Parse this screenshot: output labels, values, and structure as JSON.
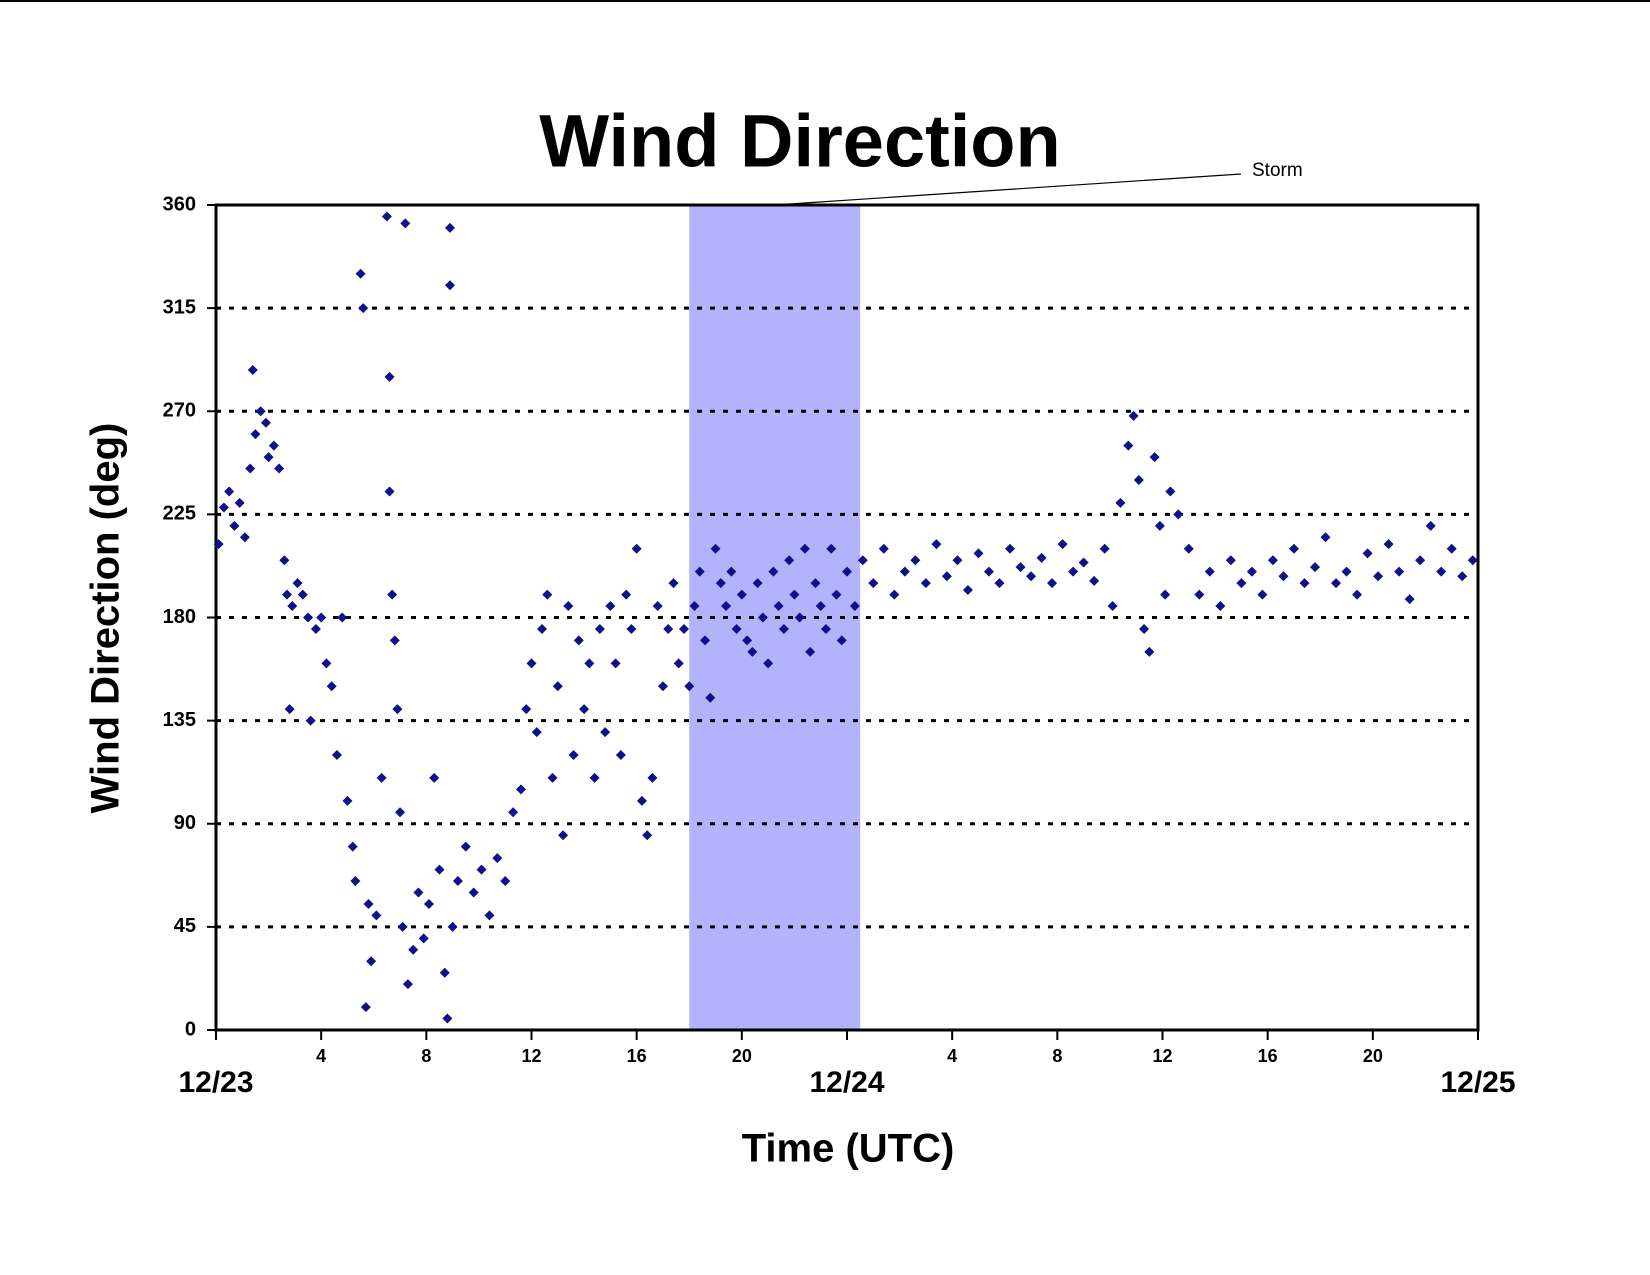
{
  "chart_data": {
    "type": "scatter",
    "title": "Wind Direction",
    "x_label": "Time (UTC)",
    "y_label": "Wind Direction (deg)",
    "color": "#10108a",
    "marker": "diamond",
    "grid": true,
    "shaded_region": {
      "label": "Storm",
      "x": [
        18,
        24.5
      ],
      "color": "#b3b3fb"
    },
    "xlim": [
      0,
      48
    ],
    "ylim": [
      0,
      360
    ],
    "yticks": [
      0,
      45,
      90,
      135,
      180,
      225,
      270,
      315,
      360
    ],
    "xticks": [
      {
        "value": 0,
        "label": "12/23"
      },
      4,
      8,
      12,
      16,
      20,
      {
        "value": 24,
        "label": "12/24"
      },
      {
        "value": 28,
        "label": "4"
      },
      {
        "value": 32,
        "label": "8"
      },
      {
        "value": 36,
        "label": "12"
      },
      {
        "value": 40,
        "label": "16"
      },
      {
        "value": 44,
        "label": "20"
      },
      {
        "value": 48,
        "label": "12/25"
      }
    ],
    "x": [
      0.1,
      0.3,
      0.5,
      0.7,
      0.9,
      1.1,
      1.3,
      1.4,
      1.5,
      1.7,
      1.9,
      2.0,
      2.2,
      2.4,
      2.6,
      2.7,
      2.8,
      2.9,
      3.1,
      3.3,
      3.5,
      3.6,
      3.8,
      4.0,
      4.2,
      4.4,
      4.6,
      4.8,
      5.0,
      5.2,
      5.3,
      5.5,
      5.6,
      5.7,
      5.8,
      5.9,
      6.1,
      6.3,
      6.5,
      6.6,
      6.6,
      6.7,
      6.8,
      6.9,
      7.0,
      7.1,
      7.2,
      7.3,
      7.5,
      7.7,
      7.9,
      8.1,
      8.3,
      8.5,
      8.7,
      8.8,
      8.9,
      8.9,
      9.0,
      9.2,
      9.5,
      9.8,
      10.1,
      10.4,
      10.7,
      11.0,
      11.3,
      11.6,
      11.8,
      12.0,
      12.2,
      12.4,
      12.6,
      12.8,
      13.0,
      13.2,
      13.4,
      13.6,
      13.8,
      14.0,
      14.2,
      14.4,
      14.6,
      14.8,
      15.0,
      15.2,
      15.4,
      15.6,
      15.8,
      16.0,
      16.2,
      16.4,
      16.6,
      16.8,
      17.0,
      17.2,
      17.4,
      17.6,
      17.8,
      18.0,
      18.2,
      18.4,
      18.6,
      18.8,
      19.0,
      19.2,
      19.4,
      19.6,
      19.8,
      20.0,
      20.2,
      20.4,
      20.6,
      20.8,
      21.0,
      21.2,
      21.4,
      21.6,
      21.8,
      22.0,
      22.2,
      22.4,
      22.6,
      22.8,
      23.0,
      23.2,
      23.4,
      23.6,
      23.8,
      24.0,
      24.3,
      24.6,
      25.0,
      25.4,
      25.8,
      26.2,
      26.6,
      27.0,
      27.4,
      27.8,
      28.2,
      28.6,
      29.0,
      29.4,
      29.8,
      30.2,
      30.6,
      31.0,
      31.4,
      31.8,
      32.2,
      32.6,
      33.0,
      33.4,
      33.8,
      34.1,
      34.4,
      34.7,
      34.9,
      35.1,
      35.3,
      35.5,
      35.7,
      35.9,
      36.1,
      36.3,
      36.6,
      37.0,
      37.4,
      37.8,
      38.2,
      38.6,
      39.0,
      39.4,
      39.8,
      40.2,
      40.6,
      41.0,
      41.4,
      41.8,
      42.2,
      42.6,
      43.0,
      43.4,
      43.8,
      44.2,
      44.6,
      45.0,
      45.4,
      45.8,
      46.2,
      46.6,
      47.0,
      47.4,
      47.8
    ],
    "values": [
      212,
      228,
      235,
      220,
      230,
      215,
      245,
      288,
      260,
      270,
      265,
      250,
      255,
      245,
      205,
      190,
      140,
      185,
      195,
      190,
      180,
      135,
      175,
      180,
      160,
      150,
      120,
      180,
      100,
      80,
      65,
      330,
      315,
      10,
      55,
      30,
      50,
      110,
      355,
      285,
      235,
      190,
      170,
      140,
      95,
      45,
      352,
      20,
      35,
      60,
      40,
      55,
      110,
      70,
      25,
      5,
      350,
      325,
      45,
      65,
      80,
      60,
      70,
      50,
      75,
      65,
      95,
      105,
      140,
      160,
      130,
      175,
      190,
      110,
      150,
      85,
      185,
      120,
      170,
      140,
      160,
      110,
      175,
      130,
      185,
      160,
      120,
      190,
      175,
      210,
      100,
      85,
      110,
      185,
      150,
      175,
      195,
      160,
      175,
      150,
      185,
      200,
      170,
      145,
      210,
      195,
      185,
      200,
      175,
      190,
      170,
      165,
      195,
      180,
      160,
      200,
      185,
      175,
      205,
      190,
      180,
      210,
      165,
      195,
      185,
      175,
      210,
      190,
      170,
      200,
      185,
      205,
      195,
      210,
      190,
      200,
      205,
      195,
      212,
      198,
      205,
      192,
      208,
      200,
      195,
      210,
      202,
      198,
      206,
      195,
      212,
      200,
      204,
      196,
      210,
      185,
      230,
      255,
      268,
      240,
      175,
      165,
      250,
      220,
      190,
      235,
      225,
      210,
      190,
      200,
      185,
      205,
      195,
      200,
      190,
      205,
      198,
      210,
      195,
      202,
      215,
      195,
      200,
      190,
      208,
      198,
      212,
      200,
      188,
      205,
      220,
      200,
      210,
      198,
      205
    ]
  }
}
